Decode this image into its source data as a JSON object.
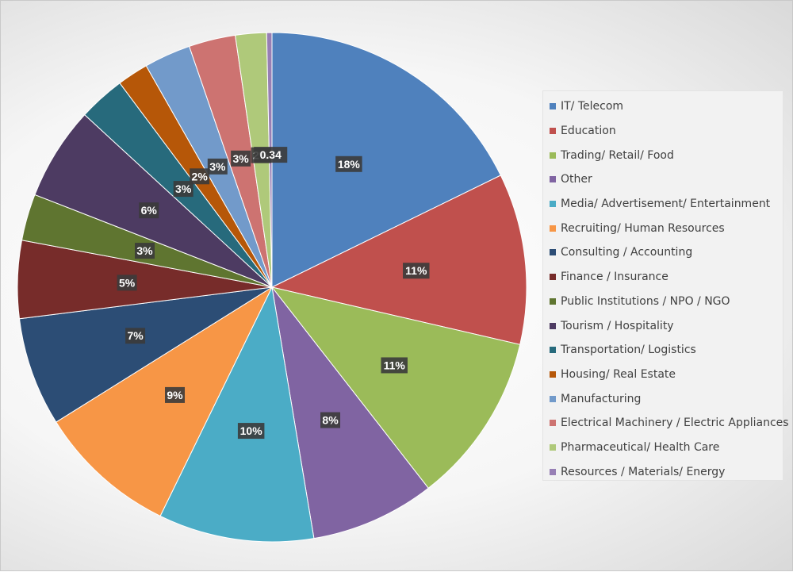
{
  "chart_data": {
    "type": "pie",
    "title": "",
    "legend_position": "right",
    "slices": [
      {
        "label": "IT/ Telecom",
        "value": 18,
        "display": "18%",
        "color": "#4F81BD"
      },
      {
        "label": "Education",
        "value": 11,
        "display": "11%",
        "color": "#C0504D"
      },
      {
        "label": "Trading/ Retail/ Food",
        "value": 11,
        "display": "11%",
        "color": "#9BBB59"
      },
      {
        "label": "Other",
        "value": 8,
        "display": "8%",
        "color": "#8064A2"
      },
      {
        "label": "Media/ Advertisement/ Entertainment",
        "value": 10,
        "display": "10%",
        "color": "#4BACC6"
      },
      {
        "label": "Recruiting/ Human Resources",
        "value": 9,
        "display": "9%",
        "color": "#F79646"
      },
      {
        "label": "Consulting / Accounting",
        "value": 7,
        "display": "7%",
        "color": "#2C4D75"
      },
      {
        "label": "Finance / Insurance",
        "value": 5,
        "display": "5%",
        "color": "#772C2A"
      },
      {
        "label": "Public Institutions / NPO / NGO",
        "value": 3,
        "display": "3%",
        "color": "#5F7530"
      },
      {
        "label": "Tourism / Hospitality",
        "value": 6,
        "display": "6%",
        "color": "#4D3B62"
      },
      {
        "label": "Transportation/ Logistics",
        "value": 3,
        "display": "3%",
        "color": "#276A7C"
      },
      {
        "label": "Housing/ Real Estate",
        "value": 2,
        "display": "2%",
        "color": "#B65708"
      },
      {
        "label": "Manufacturing",
        "value": 3,
        "display": "3%",
        "color": "#729ACA"
      },
      {
        "label": "Electrical Machinery / Electric Appliances",
        "value": 3,
        "display": "3%",
        "color": "#CD7371"
      },
      {
        "label": "Pharmaceutical/ Health Care",
        "value": 2,
        "display": "2%",
        "color": "#AFC97A"
      },
      {
        "label": "Resources / Materials/ Energy",
        "value": 0.34,
        "display": "0.34",
        "color": "#977FB5"
      }
    ]
  }
}
